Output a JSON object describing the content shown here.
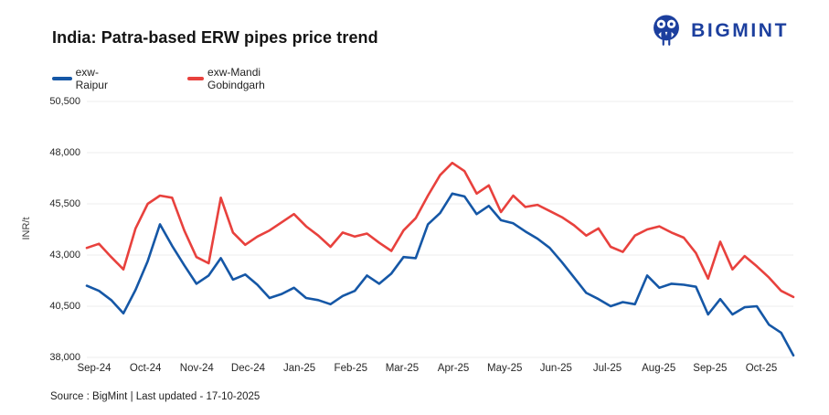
{
  "header": {
    "title": "India: Patra-based ERW pipes price trend",
    "brand": "BIGMINT"
  },
  "footer": {
    "source": "Source : BigMint | Last updated - 17-10-2025"
  },
  "colors": {
    "raipur_blue": "#1557a6",
    "gobindgarh_red": "#e8413d",
    "brand_navy": "#1c3f9e",
    "gridline": "#ececec"
  },
  "chart_data": {
    "type": "line",
    "title": "India: Patra-based ERW pipes price trend",
    "xlabel": "",
    "ylabel": "INR/t",
    "ylim": [
      38000,
      50500
    ],
    "grid": "horizontal-only",
    "legend_position": "top-left",
    "frequency": "weekly points, Sep-2024 to mid-Oct-2025",
    "x_ticks": [
      "Sep-24",
      "Oct-24",
      "Nov-24",
      "Dec-24",
      "Jan-25",
      "Feb-25",
      "Mar-25",
      "Apr-25",
      "May-25",
      "Jun-25",
      "Jul-25",
      "Aug-25",
      "Sep-25",
      "Oct-25"
    ],
    "y_ticks": [
      {
        "label": "50,500",
        "value": 50500
      },
      {
        "label": "48,000",
        "value": 48000
      },
      {
        "label": "45,500",
        "value": 45500
      },
      {
        "label": "43,000",
        "value": 43000
      },
      {
        "label": "40,500",
        "value": 40500
      },
      {
        "label": "38,000",
        "value": 38000
      }
    ],
    "series": [
      {
        "name": "exw-Raipur",
        "color": "#1557a6",
        "values": [
          41500,
          41250,
          40800,
          40150,
          41300,
          42700,
          44500,
          43450,
          42500,
          41600,
          42000,
          42850,
          41800,
          42050,
          41550,
          40900,
          41100,
          41400,
          40900,
          40800,
          40600,
          41000,
          41250,
          42000,
          41600,
          42100,
          42900,
          42850,
          44500,
          45050,
          46000,
          45860,
          45000,
          45400,
          44700,
          44550,
          44150,
          43800,
          43350,
          42650,
          41900,
          41150,
          40850,
          40500,
          40700,
          40600,
          42000,
          41400,
          41600,
          41550,
          41450,
          40100,
          40850,
          40100,
          40450,
          40500,
          39600,
          39200,
          38100
        ]
      },
      {
        "name": "exw-Mandi Gobindgarh",
        "color": "#e8413d",
        "values": [
          43350,
          43550,
          42900,
          42300,
          44300,
          45500,
          45900,
          45800,
          44200,
          42900,
          42600,
          45800,
          44100,
          43500,
          43900,
          44200,
          44600,
          45000,
          44400,
          43950,
          43400,
          44100,
          43900,
          44050,
          43600,
          43200,
          44200,
          44800,
          45900,
          46900,
          47500,
          47100,
          46000,
          46400,
          45100,
          45900,
          45350,
          45450,
          45150,
          44850,
          44450,
          43950,
          44300,
          43400,
          43150,
          43950,
          44250,
          44400,
          44100,
          43850,
          43100,
          41850,
          43650,
          42300,
          42950,
          42450,
          41900,
          41250,
          40950
        ]
      }
    ]
  }
}
